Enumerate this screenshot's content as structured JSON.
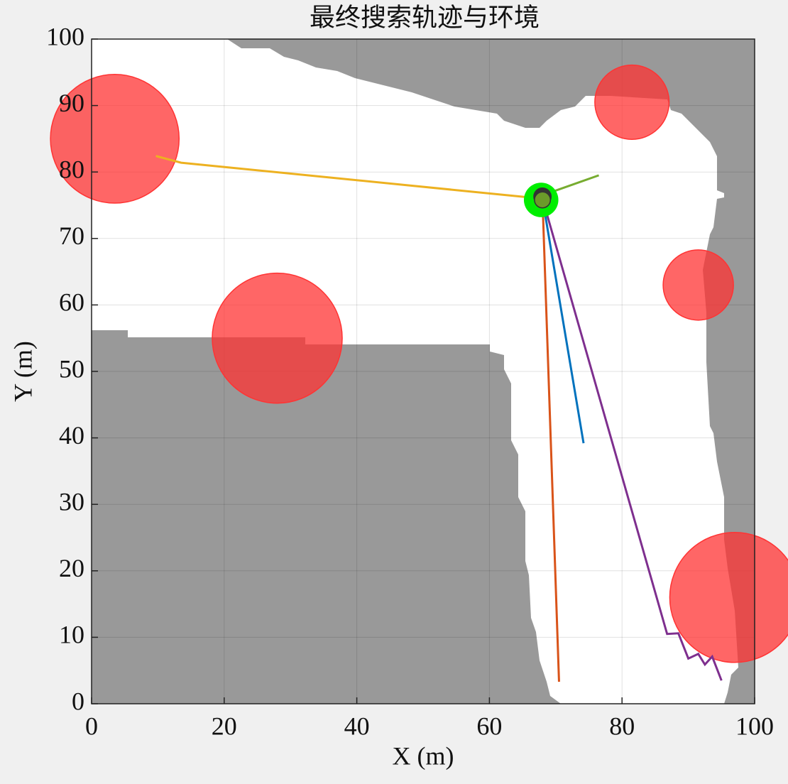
{
  "chart_data": {
    "type": "line",
    "title": "最终搜索轨迹与环境",
    "xlabel": "X (m)",
    "ylabel": "Y (m)",
    "xlim": [
      0,
      100
    ],
    "ylim": [
      0,
      100
    ],
    "xticks": [
      0,
      20,
      40,
      60,
      80,
      100
    ],
    "yticks": [
      0,
      10,
      20,
      30,
      40,
      50,
      60,
      70,
      80,
      90,
      100
    ],
    "grid": true,
    "obstacle_color": "#ff3333",
    "obstacles": [
      {
        "x": 3.5,
        "y": 85,
        "r": 9.7
      },
      {
        "x": 28,
        "y": 55,
        "r": 9.8
      },
      {
        "x": 81.5,
        "y": 90.5,
        "r": 5.6
      },
      {
        "x": 91.5,
        "y": 63,
        "r": 5.3
      },
      {
        "x": 97,
        "y": 16,
        "r": 9.8
      }
    ],
    "series": [
      {
        "color": "#edb120",
        "x": [
          67.8,
          13.5,
          9.7
        ],
        "values": [
          76,
          81.4,
          82.4
        ]
      },
      {
        "color": "#77ac30",
        "x": [
          68,
          76.5
        ],
        "values": [
          76.5,
          79.5
        ]
      },
      {
        "color": "#0072bd",
        "x": [
          68,
          74.2
        ],
        "values": [
          76,
          39.2
        ]
      },
      {
        "color": "#d95319",
        "x": [
          68,
          70.5
        ],
        "values": [
          76,
          3.3
        ]
      },
      {
        "color": "#7e2f8e",
        "x": [
          68,
          86.8,
          88.5,
          90,
          91.5,
          92.5,
          93.6,
          95
        ],
        "values": [
          76,
          10.5,
          10.6,
          6.8,
          7.5,
          5.9,
          7.1,
          3.5
        ]
      }
    ],
    "markers": [
      {
        "x": 67.8,
        "y": 75.8,
        "color": "#00ee00",
        "size": 2.6
      },
      {
        "x": 68,
        "y": 76.3,
        "color": "#333333",
        "size": 1.3
      },
      {
        "x": 68,
        "y": 75.8,
        "color": "#6b9a2a",
        "size": 1.2
      }
    ]
  }
}
